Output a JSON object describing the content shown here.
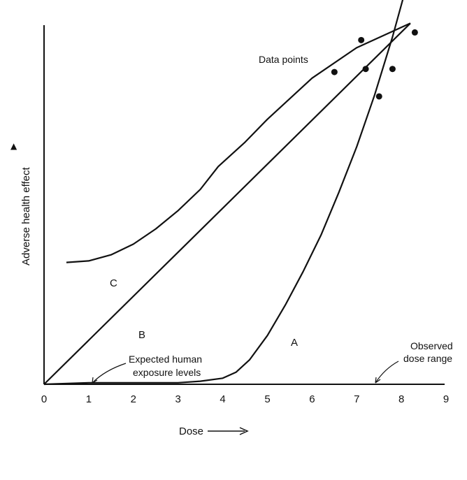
{
  "chart_data": {
    "type": "line",
    "title": "",
    "xlabel": "Dose",
    "ylabel": "Adverse health effect",
    "xlim": [
      0,
      9
    ],
    "x_ticks": [
      "0",
      "1",
      "2",
      "3",
      "4",
      "5",
      "6",
      "7",
      "8",
      "9"
    ],
    "grid": false,
    "legend": "none",
    "series": [
      {
        "name": "A",
        "x": [
          0,
          1,
          2,
          3,
          3.5,
          4,
          4.3,
          4.6,
          5,
          5.4,
          5.8,
          6.2,
          6.6,
          7,
          7.4,
          7.8,
          8.1
        ],
        "y": [
          0,
          0.01,
          0.01,
          0.01,
          0.02,
          0.04,
          0.08,
          0.16,
          0.32,
          0.52,
          0.74,
          0.98,
          1.26,
          1.56,
          1.9,
          2.28,
          2.6
        ]
      },
      {
        "name": "B",
        "x": [
          0,
          8.2
        ],
        "y": [
          0,
          2.37
        ]
      },
      {
        "name": "C",
        "x": [
          0.5,
          1,
          1.5,
          2,
          2.5,
          3,
          3.5,
          3.9,
          4.5,
          5,
          6,
          7,
          8.2
        ],
        "y": [
          0.8,
          0.81,
          0.85,
          0.92,
          1.02,
          1.14,
          1.28,
          1.43,
          1.59,
          1.74,
          2.01,
          2.21,
          2.37
        ]
      }
    ],
    "data_points": [
      {
        "x": 6.5,
        "y": 2.05
      },
      {
        "x": 7.1,
        "y": 2.26
      },
      {
        "x": 7.2,
        "y": 2.07
      },
      {
        "x": 7.5,
        "y": 1.89
      },
      {
        "x": 7.8,
        "y": 2.07
      },
      {
        "x": 8.3,
        "y": 2.31
      }
    ],
    "annotations": {
      "data_points": "Data points",
      "expected_exposure": [
        "Expected human",
        "exposure levels"
      ],
      "observed_range": [
        "Observed",
        "dose range"
      ]
    }
  }
}
